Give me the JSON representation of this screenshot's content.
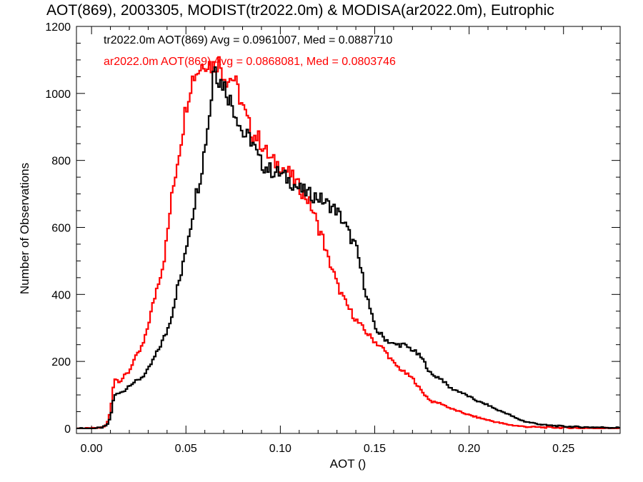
{
  "chart_data": {
    "type": "line",
    "title": "AOT(869), 2003305, MODIST(tr2022.0m) & MODISA(ar2022.0m), Eutrophic",
    "xlabel": "AOT ()",
    "ylabel": "Number of Observations",
    "xlim": [
      -0.008,
      0.28
    ],
    "ylim": [
      -15,
      1200
    ],
    "x_ticks": [
      "0.00",
      "0.05",
      "0.10",
      "0.15",
      "0.20",
      "0.25"
    ],
    "y_ticks": [
      "0",
      "200",
      "400",
      "600",
      "800",
      "1000",
      "1200"
    ],
    "grid": false,
    "step": true,
    "series": [
      {
        "name": "tr2022.0m AOT(869) Avg = 0.0961007, Med = 0.0887710",
        "color": "#000000",
        "points": [
          [
            -0.008,
            0
          ],
          [
            0.0,
            0
          ],
          [
            0.005,
            2
          ],
          [
            0.008,
            8
          ],
          [
            0.01,
            30
          ],
          [
            0.012,
            100
          ],
          [
            0.015,
            105
          ],
          [
            0.018,
            115
          ],
          [
            0.02,
            130
          ],
          [
            0.025,
            145
          ],
          [
            0.028,
            160
          ],
          [
            0.03,
            175
          ],
          [
            0.035,
            230
          ],
          [
            0.04,
            290
          ],
          [
            0.043,
            350
          ],
          [
            0.045,
            410
          ],
          [
            0.048,
            470
          ],
          [
            0.05,
            540
          ],
          [
            0.053,
            620
          ],
          [
            0.055,
            690
          ],
          [
            0.058,
            760
          ],
          [
            0.06,
            840
          ],
          [
            0.062,
            920
          ],
          [
            0.064,
            1010
          ],
          [
            0.065,
            1120
          ],
          [
            0.067,
            1040
          ],
          [
            0.07,
            1030
          ],
          [
            0.072,
            1000
          ],
          [
            0.075,
            960
          ],
          [
            0.078,
            920
          ],
          [
            0.08,
            880
          ],
          [
            0.085,
            860
          ],
          [
            0.088,
            810
          ],
          [
            0.09,
            790
          ],
          [
            0.095,
            770
          ],
          [
            0.1,
            760
          ],
          [
            0.105,
            740
          ],
          [
            0.11,
            715
          ],
          [
            0.115,
            700
          ],
          [
            0.12,
            690
          ],
          [
            0.125,
            670
          ],
          [
            0.13,
            650
          ],
          [
            0.135,
            600
          ],
          [
            0.138,
            560
          ],
          [
            0.14,
            545
          ],
          [
            0.145,
            415
          ],
          [
            0.15,
            300
          ],
          [
            0.155,
            270
          ],
          [
            0.16,
            250
          ],
          [
            0.165,
            250
          ],
          [
            0.17,
            235
          ],
          [
            0.175,
            210
          ],
          [
            0.18,
            160
          ],
          [
            0.185,
            150
          ],
          [
            0.19,
            120
          ],
          [
            0.195,
            110
          ],
          [
            0.2,
            95
          ],
          [
            0.205,
            80
          ],
          [
            0.21,
            70
          ],
          [
            0.215,
            55
          ],
          [
            0.22,
            45
          ],
          [
            0.225,
            30
          ],
          [
            0.23,
            20
          ],
          [
            0.235,
            15
          ],
          [
            0.24,
            10
          ],
          [
            0.25,
            6
          ],
          [
            0.26,
            4
          ],
          [
            0.27,
            3
          ],
          [
            0.28,
            2
          ]
        ]
      },
      {
        "name": "ar2022.0m AOT(869) Avg = 0.0868081, Med = 0.0803746",
        "color": "#ff0000",
        "points": [
          [
            -0.008,
            0
          ],
          [
            0.0,
            0
          ],
          [
            0.005,
            2
          ],
          [
            0.008,
            10
          ],
          [
            0.01,
            50
          ],
          [
            0.012,
            150
          ],
          [
            0.015,
            140
          ],
          [
            0.018,
            160
          ],
          [
            0.02,
            170
          ],
          [
            0.022,
            200
          ],
          [
            0.025,
            225
          ],
          [
            0.028,
            260
          ],
          [
            0.03,
            310
          ],
          [
            0.033,
            380
          ],
          [
            0.035,
            430
          ],
          [
            0.038,
            490
          ],
          [
            0.04,
            570
          ],
          [
            0.042,
            670
          ],
          [
            0.045,
            780
          ],
          [
            0.048,
            880
          ],
          [
            0.05,
            960
          ],
          [
            0.053,
            1040
          ],
          [
            0.055,
            1060
          ],
          [
            0.058,
            1080
          ],
          [
            0.06,
            1100
          ],
          [
            0.062,
            1090
          ],
          [
            0.065,
            1080
          ],
          [
            0.067,
            1100
          ],
          [
            0.07,
            1060
          ],
          [
            0.072,
            1040
          ],
          [
            0.075,
            1050
          ],
          [
            0.078,
            1000
          ],
          [
            0.08,
            960
          ],
          [
            0.085,
            880
          ],
          [
            0.088,
            870
          ],
          [
            0.09,
            850
          ],
          [
            0.095,
            800
          ],
          [
            0.1,
            785
          ],
          [
            0.105,
            760
          ],
          [
            0.11,
            720
          ],
          [
            0.115,
            680
          ],
          [
            0.118,
            640
          ],
          [
            0.12,
            600
          ],
          [
            0.122,
            580
          ],
          [
            0.125,
            510
          ],
          [
            0.128,
            470
          ],
          [
            0.13,
            430
          ],
          [
            0.135,
            370
          ],
          [
            0.14,
            325
          ],
          [
            0.145,
            290
          ],
          [
            0.15,
            260
          ],
          [
            0.155,
            235
          ],
          [
            0.16,
            195
          ],
          [
            0.165,
            170
          ],
          [
            0.17,
            150
          ],
          [
            0.175,
            110
          ],
          [
            0.18,
            80
          ],
          [
            0.185,
            75
          ],
          [
            0.19,
            60
          ],
          [
            0.195,
            50
          ],
          [
            0.2,
            40
          ],
          [
            0.205,
            32
          ],
          [
            0.21,
            25
          ],
          [
            0.215,
            18
          ],
          [
            0.22,
            12
          ],
          [
            0.225,
            8
          ],
          [
            0.23,
            5
          ],
          [
            0.24,
            3
          ],
          [
            0.25,
            2
          ],
          [
            0.26,
            1
          ],
          [
            0.27,
            1
          ],
          [
            0.28,
            0
          ]
        ]
      }
    ]
  }
}
